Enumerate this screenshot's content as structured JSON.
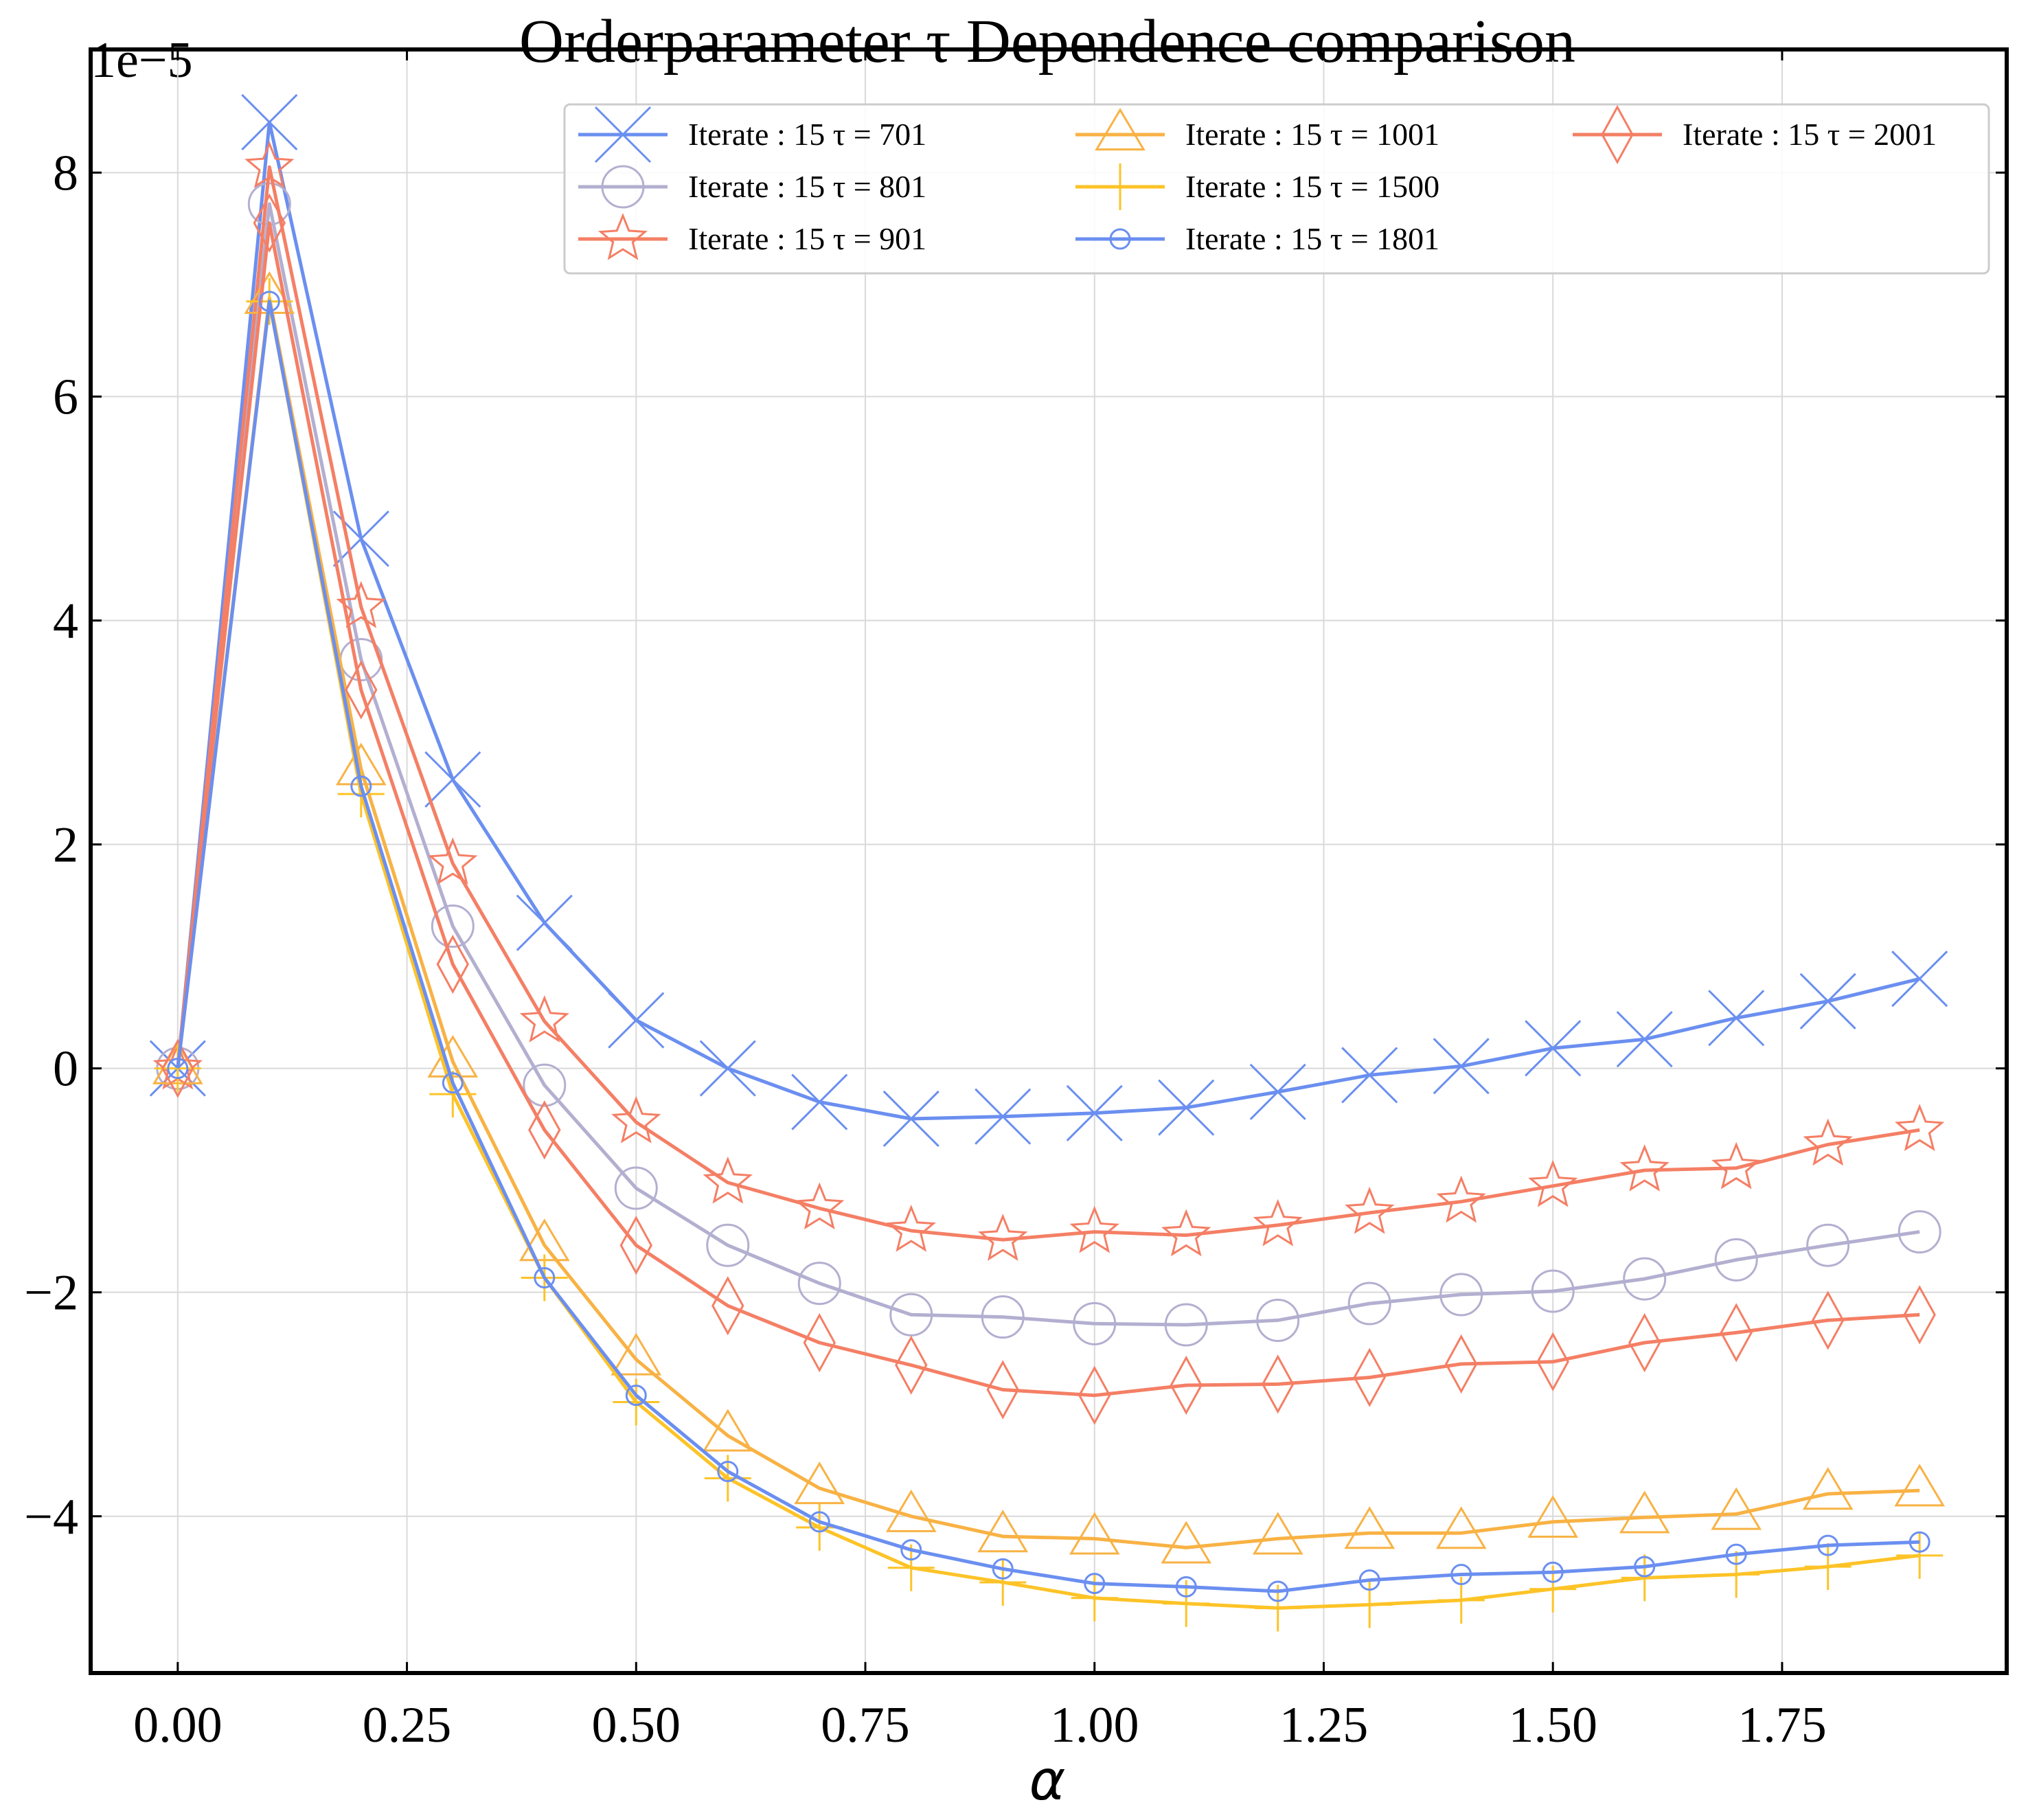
{
  "chart_data": {
    "type": "line",
    "title": "Orderparameter τ Dependence comparison",
    "xlabel": "α",
    "ylabel": "",
    "y_scale_label": "1e−5",
    "xlim": [
      -0.095,
      1.995
    ],
    "ylim": [
      -5.4,
      9.1
    ],
    "xticks": [
      0.0,
      0.25,
      0.5,
      0.75,
      1.0,
      1.25,
      1.5,
      1.75
    ],
    "xtick_labels": [
      "0.00",
      "0.25",
      "0.50",
      "0.75",
      "1.00",
      "1.25",
      "1.50",
      "1.75"
    ],
    "yticks": [
      -4,
      -2,
      0,
      2,
      4,
      6,
      8
    ],
    "ytick_labels": [
      "−4",
      "−2",
      "0",
      "2",
      "4",
      "6",
      "8"
    ],
    "grid": true,
    "legend_position": "top-right",
    "x": [
      0.0,
      0.1,
      0.2,
      0.3,
      0.4,
      0.5,
      0.6,
      0.7,
      0.8,
      0.9,
      1.0,
      1.1,
      1.2,
      1.3,
      1.4,
      1.5,
      1.6,
      1.7,
      1.8,
      1.9
    ],
    "series": [
      {
        "name": "Iterate : 15  τ = 701",
        "color": "#6b8ff0",
        "marker": "x",
        "values": [
          0.0,
          8.45,
          4.73,
          2.58,
          1.3,
          0.43,
          0.0,
          -0.3,
          -0.45,
          -0.43,
          -0.4,
          -0.35,
          -0.21,
          -0.06,
          0.02,
          0.18,
          0.26,
          0.45,
          0.6,
          0.8
        ]
      },
      {
        "name": "Iterate : 15  τ = 801",
        "color": "#b3afd0",
        "marker": "circle",
        "values": [
          0.0,
          7.72,
          3.65,
          1.27,
          -0.15,
          -1.07,
          -1.58,
          -1.92,
          -2.2,
          -2.22,
          -2.28,
          -2.29,
          -2.25,
          -2.1,
          -2.02,
          -1.99,
          -1.88,
          -1.71,
          -1.58,
          -1.46
        ]
      },
      {
        "name": "Iterate : 15  τ = 901",
        "color": "#f47f65",
        "marker": "star",
        "values": [
          0.0,
          8.05,
          4.12,
          1.83,
          0.42,
          -0.48,
          -1.02,
          -1.25,
          -1.45,
          -1.53,
          -1.46,
          -1.49,
          -1.4,
          -1.29,
          -1.19,
          -1.05,
          -0.91,
          -0.89,
          -0.68,
          -0.55
        ]
      },
      {
        "name": "Iterate : 15  τ = 1001",
        "color": "#f8b244",
        "marker": "triangle",
        "values": [
          0.0,
          6.88,
          2.67,
          0.06,
          -1.58,
          -2.6,
          -3.28,
          -3.75,
          -4.0,
          -4.18,
          -4.2,
          -4.28,
          -4.2,
          -4.15,
          -4.15,
          -4.05,
          -4.01,
          -3.98,
          -3.8,
          -3.77
        ]
      },
      {
        "name": "Iterate : 15  τ = 1500",
        "color": "#fdc327",
        "marker": "plus",
        "values": [
          0.0,
          6.85,
          2.45,
          -0.23,
          -1.87,
          -2.98,
          -3.66,
          -4.1,
          -4.46,
          -4.59,
          -4.73,
          -4.78,
          -4.82,
          -4.79,
          -4.75,
          -4.65,
          -4.55,
          -4.52,
          -4.45,
          -4.35
        ]
      },
      {
        "name": "Iterate : 15  τ = 2001",
        "color": "#f47f65",
        "marker": "diamond",
        "values": [
          0.0,
          7.55,
          3.38,
          0.93,
          -0.55,
          -1.58,
          -2.12,
          -2.45,
          -2.65,
          -2.87,
          -2.92,
          -2.83,
          -2.82,
          -2.76,
          -2.64,
          -2.62,
          -2.45,
          -2.36,
          -2.25,
          -2.2
        ]
      },
      {
        "name": "Iterate : 15  τ = 1801",
        "color": "#6b8ff0",
        "marker": "small-circle",
        "values": [
          0.0,
          6.85,
          2.52,
          -0.13,
          -1.87,
          -2.92,
          -3.6,
          -4.05,
          -4.3,
          -4.47,
          -4.6,
          -4.63,
          -4.67,
          -4.57,
          -4.52,
          -4.5,
          -4.45,
          -4.34,
          -4.26,
          -4.23
        ]
      }
    ],
    "legend_order": [
      0,
      1,
      2,
      3,
      4,
      6,
      5
    ]
  }
}
